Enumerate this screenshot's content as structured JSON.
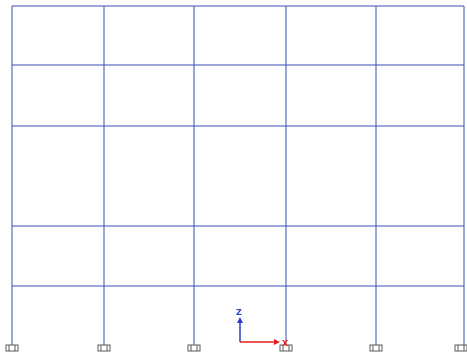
{
  "viewport": {
    "background": "#ffffff",
    "frame_color": "#3a4fb0",
    "support_color": "#5a5a5a",
    "support_count": 6,
    "floor_count": 5,
    "bay_count": 5
  },
  "axis_triad": {
    "vertical_label": "Z",
    "horizontal_label": "X",
    "vertical_color": "#2a3fc8",
    "horizontal_color": "#e02020"
  }
}
